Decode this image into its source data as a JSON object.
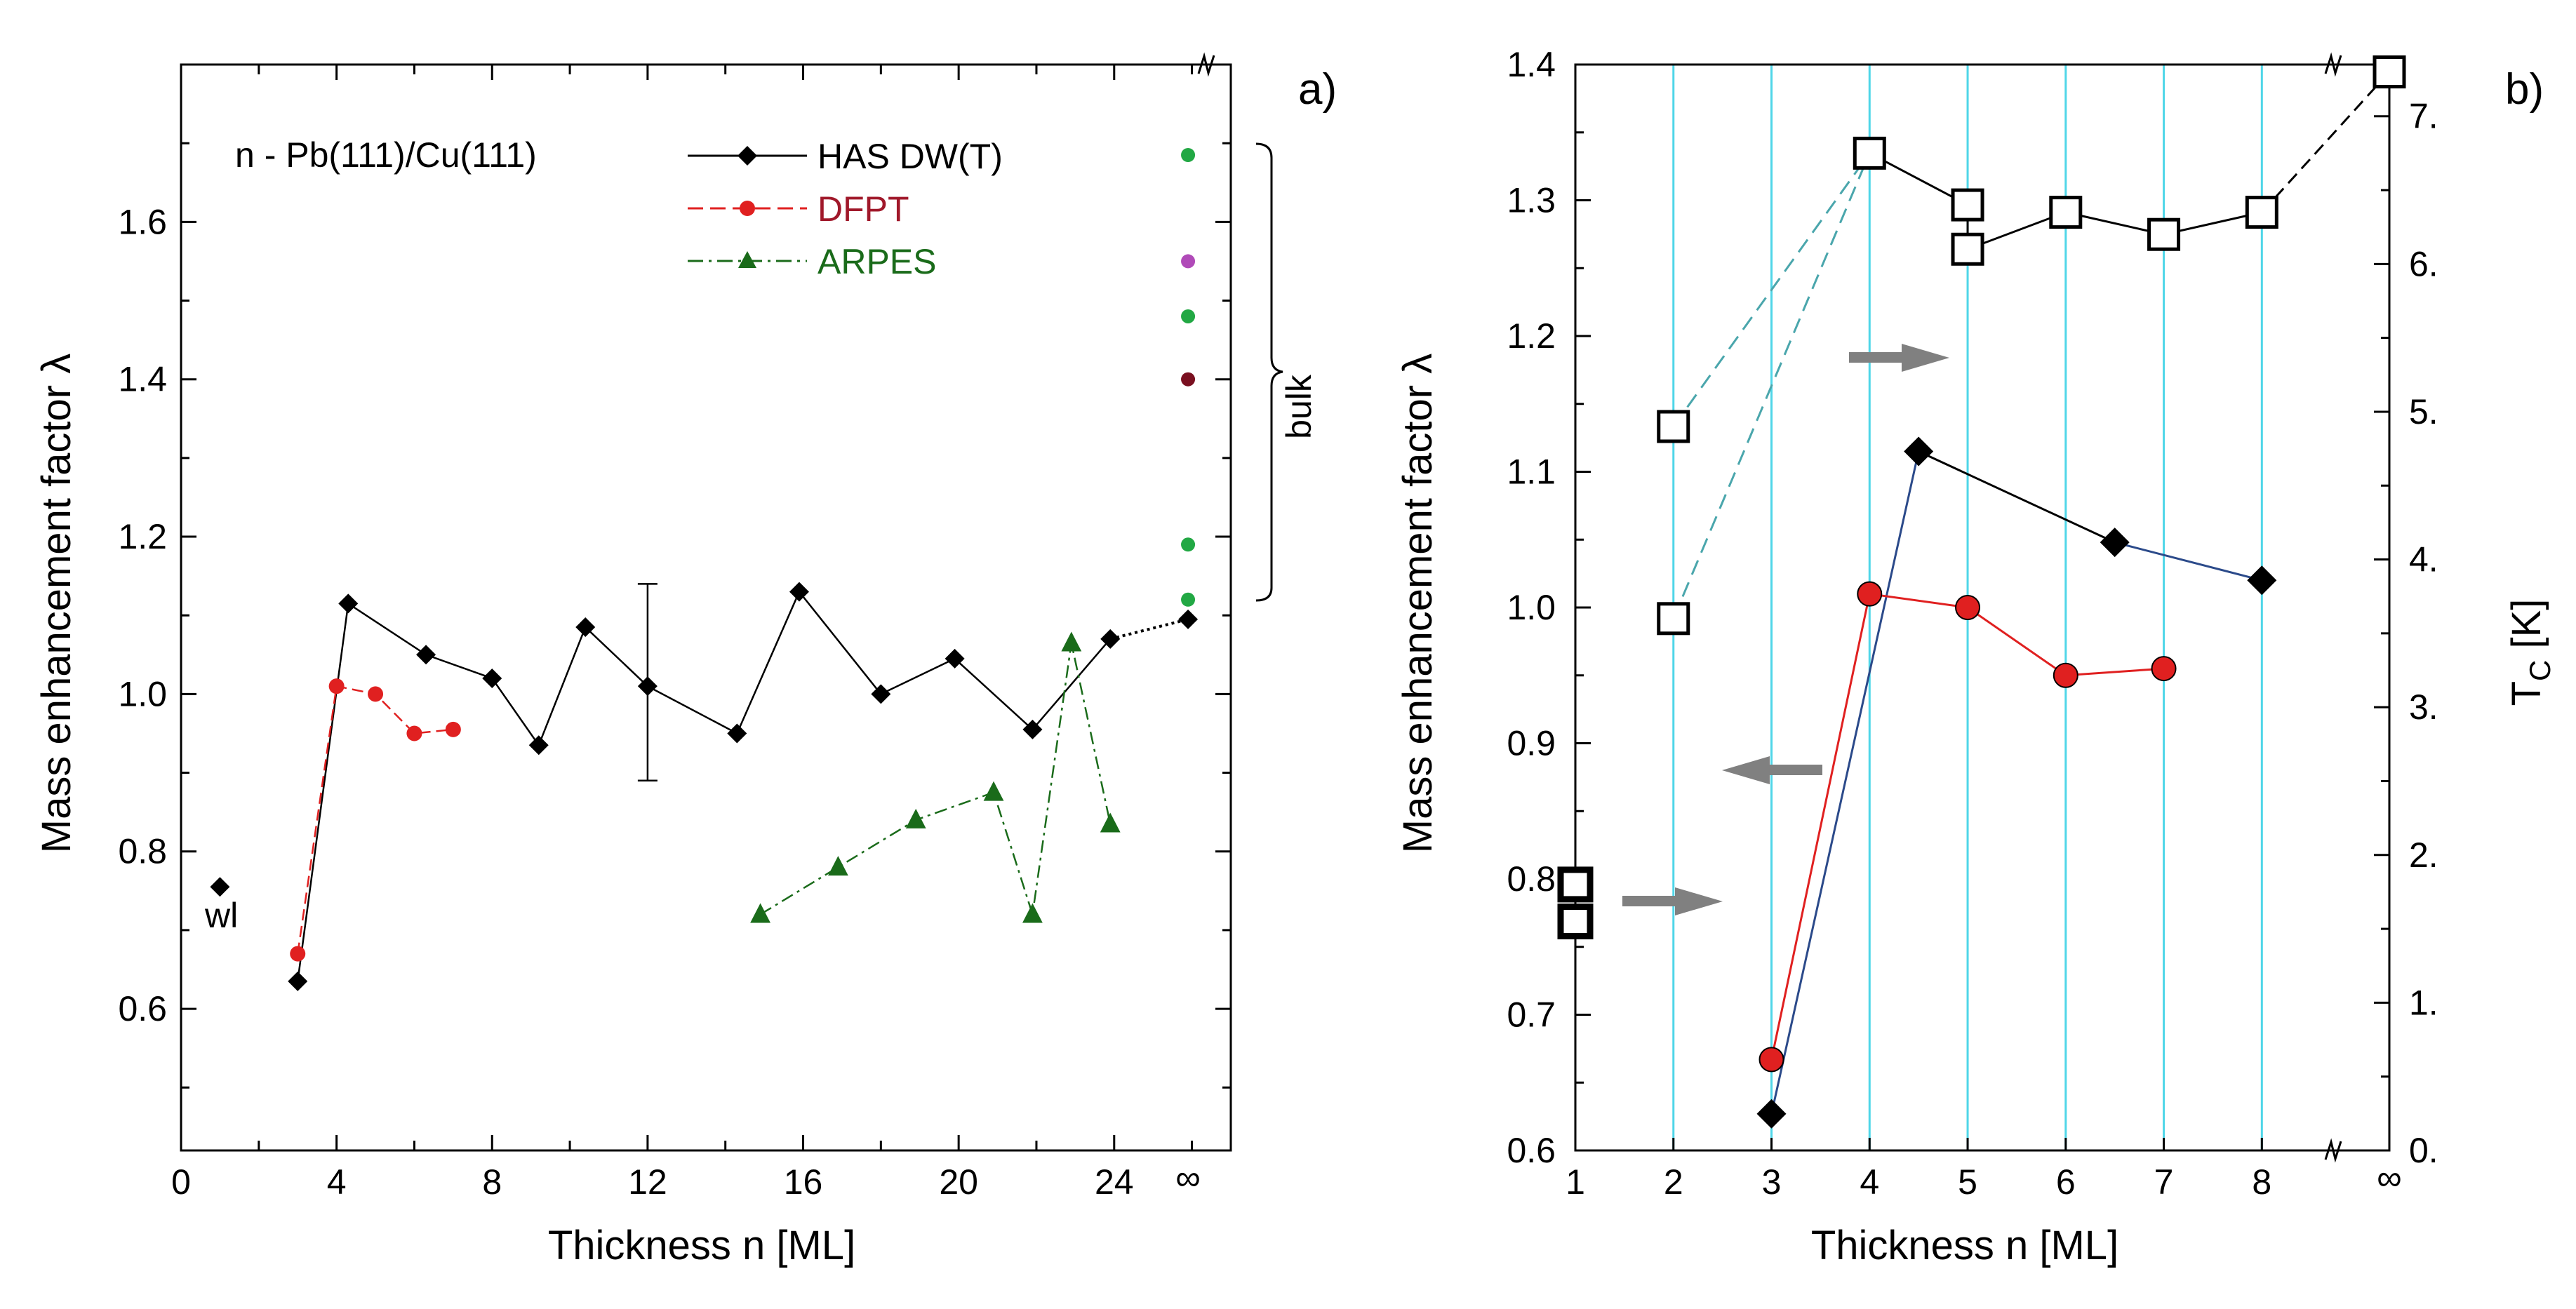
{
  "chart_data": [
    {
      "type": "line",
      "panel_label": "a)",
      "title": "n - Pb(111)/Cu(111)",
      "xlabel": "Thickness n [ML]",
      "ylabel": "Mass enhancement factor  λ",
      "xlim": [
        0,
        27
      ],
      "ylim": [
        0.42,
        1.8
      ],
      "x_ticks": [
        0,
        4,
        8,
        12,
        16,
        20,
        24
      ],
      "x_tick_labels": [
        "0",
        "4",
        "8",
        "12",
        "16",
        "20",
        "24"
      ],
      "x_infinity_label": "∞",
      "y_ticks": [
        0.6,
        0.8,
        1.0,
        1.2,
        1.4,
        1.6
      ],
      "y_tick_labels": [
        "0.6",
        "0.8",
        "1.0",
        "1.2",
        "1.4",
        "1.6"
      ],
      "legend_position": "top-center",
      "series": [
        {
          "name": "HAS DW(T)",
          "color": "#000000",
          "marker": "diamond",
          "line": "solid",
          "x": [
            3,
            4.3,
            6.3,
            8,
            9.2,
            10.4,
            12,
            14.3,
            15.9,
            18,
            19.9,
            21.9,
            23.9,
            25.9
          ],
          "y": [
            0.635,
            1.115,
            1.05,
            1.02,
            0.935,
            1.085,
            1.01,
            0.95,
            1.13,
            1.0,
            1.045,
            0.955,
            1.07,
            1.095
          ]
        },
        {
          "name": "DFPT",
          "color": "#e02020",
          "label_color": "#a0182a",
          "marker": "circle",
          "line": "dashed",
          "x": [
            3,
            4,
            5,
            6,
            7
          ],
          "y": [
            0.67,
            1.01,
            1.0,
            0.95,
            0.955
          ]
        },
        {
          "name": "ARPES",
          "color": "#1a6b1a",
          "marker": "triangle",
          "line": "dashdot",
          "x": [
            14.9,
            16.9,
            18.9,
            20.9,
            21.9,
            22.9,
            23.9
          ],
          "y": [
            0.72,
            0.78,
            0.84,
            0.875,
            0.72,
            1.065,
            0.835
          ]
        }
      ],
      "wl_point": {
        "x": 1,
        "y": 0.755,
        "label": "wl"
      },
      "error_bar": {
        "x": 12,
        "y": 1.01,
        "low": 0.89,
        "high": 1.14
      },
      "bulk_points": [
        {
          "y": 1.685,
          "color": "#22a844"
        },
        {
          "y": 1.55,
          "color": "#b04ab8"
        },
        {
          "y": 1.48,
          "color": "#22a844"
        },
        {
          "y": 1.4,
          "color": "#7a1020"
        },
        {
          "y": 1.19,
          "color": "#22a844"
        },
        {
          "y": 1.12,
          "color": "#22a844"
        }
      ],
      "bulk_label": "bulk",
      "bulk_x": 25.9
    },
    {
      "type": "line",
      "panel_label": "b)",
      "xlabel": "Thickness n [ML]",
      "ylabel": "Mass enhancement factor  λ",
      "y2label": "T",
      "y2label_sub": "C",
      "y2label_unit": " [K]",
      "xlim": [
        1,
        9.3
      ],
      "ylim": [
        0.6,
        1.4
      ],
      "y2lim": [
        0,
        7.35
      ],
      "x_ticks": [
        1,
        2,
        3,
        4,
        5,
        6,
        7,
        8
      ],
      "x_tick_labels": [
        "1",
        "2",
        "3",
        "4",
        "5",
        "6",
        "7",
        "8"
      ],
      "x_infinity_label": "∞",
      "y_ticks": [
        0.6,
        0.7,
        0.8,
        0.9,
        1.0,
        1.1,
        1.2,
        1.3,
        1.4
      ],
      "y_tick_labels": [
        "0.6",
        "0.7",
        "0.8",
        "0.9",
        "1.0",
        "1.1",
        "1.2",
        "1.3",
        "1.4"
      ],
      "y2_ticks": [
        0,
        1,
        2,
        3,
        4,
        5,
        6,
        7
      ],
      "y2_tick_labels": [
        "0.",
        "1.",
        "2.",
        "3.",
        "4.",
        "5.",
        "6.",
        "7."
      ],
      "accent_color": "#4fd6e8",
      "lambda_has": {
        "color": "#000000",
        "marker": "diamond",
        "x": [
          3,
          4.5,
          6.5,
          8
        ],
        "y": [
          0.627,
          1.115,
          1.048,
          1.02
        ]
      },
      "lambda_dfpt": {
        "color": "#e02020",
        "marker": "circle",
        "x": [
          3,
          4,
          5,
          6,
          7
        ],
        "y": [
          0.667,
          1.01,
          1.0,
          0.95,
          0.955
        ]
      },
      "tc_points": {
        "x": [
          1,
          1,
          2,
          2,
          4,
          5,
          5,
          6,
          7,
          8,
          9.3
        ],
        "y": [
          1.55,
          1.8,
          3.6,
          4.9,
          6.75,
          6.1,
          6.4,
          6.35,
          6.2,
          6.35,
          7.3
        ]
      },
      "tc_solid_line": {
        "x": [
          4,
          5,
          5,
          6,
          7,
          8
        ],
        "y": [
          6.75,
          6.4,
          6.1,
          6.35,
          6.2,
          6.35
        ]
      },
      "tc_dashed_lines": [
        {
          "x": [
            2,
            4
          ],
          "y": [
            4.9,
            6.75
          ]
        },
        {
          "x": [
            2,
            4
          ],
          "y": [
            3.6,
            6.75
          ]
        }
      ],
      "tc_black_dashed": {
        "x": [
          8,
          9.3
        ],
        "y": [
          6.35,
          7.3
        ]
      }
    }
  ]
}
